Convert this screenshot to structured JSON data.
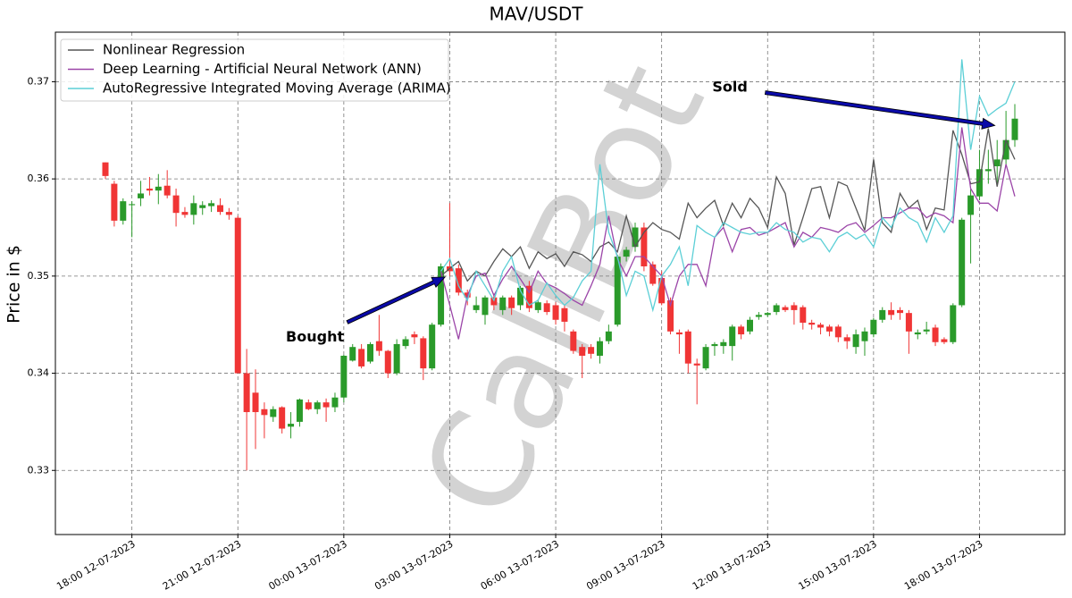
{
  "chart_data": {
    "type": "candlestick",
    "title": "MAV/USDT",
    "y_label": "Price in $",
    "watermark": "CallBot",
    "x": [
      "17:15 12-07-2023",
      "17:30 12-07-2023",
      "17:45 12-07-2023",
      "18:00 12-07-2023",
      "18:15 12-07-2023",
      "18:30 12-07-2023",
      "18:45 12-07-2023",
      "19:00 12-07-2023",
      "19:15 12-07-2023",
      "19:30 12-07-2023",
      "19:45 12-07-2023",
      "20:00 12-07-2023",
      "20:15 12-07-2023",
      "20:30 12-07-2023",
      "20:45 12-07-2023",
      "21:00 12-07-2023",
      "21:15 12-07-2023",
      "21:30 12-07-2023",
      "21:45 12-07-2023",
      "22:00 12-07-2023",
      "22:15 12-07-2023",
      "22:30 12-07-2023",
      "22:45 12-07-2023",
      "23:00 12-07-2023",
      "23:15 12-07-2023",
      "23:30 12-07-2023",
      "23:45 12-07-2023",
      "00:00 13-07-2023",
      "00:15 13-07-2023",
      "00:30 13-07-2023",
      "00:45 13-07-2023",
      "01:00 13-07-2023",
      "01:15 13-07-2023",
      "01:30 13-07-2023",
      "01:45 13-07-2023",
      "02:00 13-07-2023",
      "02:15 13-07-2023",
      "02:30 13-07-2023",
      "02:45 13-07-2023",
      "03:00 13-07-2023",
      "03:15 13-07-2023",
      "03:30 13-07-2023",
      "03:45 13-07-2023",
      "04:00 13-07-2023",
      "04:15 13-07-2023",
      "04:30 13-07-2023",
      "04:45 13-07-2023",
      "05:00 13-07-2023",
      "05:15 13-07-2023",
      "05:30 13-07-2023",
      "05:45 13-07-2023",
      "06:00 13-07-2023",
      "06:15 13-07-2023",
      "06:30 13-07-2023",
      "06:45 13-07-2023",
      "07:00 13-07-2023",
      "07:15 13-07-2023",
      "07:30 13-07-2023",
      "07:45 13-07-2023",
      "08:00 13-07-2023",
      "08:15 13-07-2023",
      "08:30 13-07-2023",
      "08:45 13-07-2023",
      "09:00 13-07-2023",
      "09:15 13-07-2023",
      "09:30 13-07-2023",
      "09:45 13-07-2023",
      "10:00 13-07-2023",
      "10:15 13-07-2023",
      "10:30 13-07-2023",
      "10:45 13-07-2023",
      "11:00 13-07-2023",
      "11:15 13-07-2023",
      "11:30 13-07-2023",
      "11:45 13-07-2023",
      "12:00 13-07-2023",
      "12:15 13-07-2023",
      "12:30 13-07-2023",
      "12:45 13-07-2023",
      "13:00 13-07-2023",
      "13:15 13-07-2023",
      "13:30 13-07-2023",
      "13:45 13-07-2023",
      "14:00 13-07-2023",
      "14:15 13-07-2023",
      "14:30 13-07-2023",
      "14:45 13-07-2023",
      "15:00 13-07-2023",
      "15:15 13-07-2023",
      "15:30 13-07-2023",
      "15:45 13-07-2023",
      "16:00 13-07-2023",
      "16:15 13-07-2023",
      "16:30 13-07-2023",
      "16:45 13-07-2023",
      "17:00 13-07-2023",
      "17:15 13-07-2023",
      "17:30 13-07-2023",
      "17:45 13-07-2023",
      "18:00 13-07-2023",
      "18:15 13-07-2023",
      "18:30 13-07-2023",
      "18:45 13-07-2023",
      "19:00 13-07-2023"
    ],
    "open": [
      0.3617,
      0.3595,
      0.3557,
      0.3573,
      0.358,
      0.359,
      0.3588,
      0.3593,
      0.3583,
      0.3566,
      0.3563,
      0.357,
      0.3572,
      0.3573,
      0.3566,
      0.356,
      0.34,
      0.338,
      0.3363,
      0.3355,
      0.3365,
      0.3345,
      0.335,
      0.337,
      0.3363,
      0.337,
      0.3365,
      0.3375,
      0.3413,
      0.3425,
      0.3412,
      0.3433,
      0.3423,
      0.34,
      0.3428,
      0.344,
      0.3436,
      0.3405,
      0.345,
      0.351,
      0.3508,
      0.3483,
      0.3465,
      0.346,
      0.3478,
      0.3465,
      0.3478,
      0.347,
      0.349,
      0.3465,
      0.3472,
      0.347,
      0.3467,
      0.3443,
      0.3427,
      0.3427,
      0.3418,
      0.3433,
      0.345,
      0.352,
      0.353,
      0.355,
      0.3512,
      0.3498,
      0.3475,
      0.3442,
      0.3443,
      0.341,
      0.3405,
      0.3428,
      0.3428,
      0.3428,
      0.3448,
      0.3443,
      0.3458,
      0.346,
      0.3463,
      0.3468,
      0.347,
      0.3468,
      0.3452,
      0.345,
      0.3448,
      0.3448,
      0.3437,
      0.3427,
      0.3433,
      0.344,
      0.3455,
      0.3465,
      0.3465,
      0.3462,
      0.344,
      0.3443,
      0.3447,
      0.3435,
      0.3432,
      0.347,
      0.3563,
      0.3582,
      0.3608,
      0.3613,
      0.362,
      0.364
    ],
    "high": [
      0.3617,
      0.3598,
      0.358,
      0.3577,
      0.3598,
      0.3602,
      0.3605,
      0.3609,
      0.359,
      0.3571,
      0.3583,
      0.3577,
      0.3578,
      0.358,
      0.357,
      0.3562,
      0.3425,
      0.3404,
      0.337,
      0.3366,
      0.3366,
      0.336,
      0.3374,
      0.3373,
      0.3372,
      0.3374,
      0.338,
      0.3419,
      0.343,
      0.343,
      0.3432,
      0.346,
      0.3424,
      0.3435,
      0.3438,
      0.3443,
      0.3438,
      0.3452,
      0.3513,
      0.3575,
      0.3512,
      0.3486,
      0.3479,
      0.348,
      0.3482,
      0.348,
      0.348,
      0.349,
      0.3495,
      0.3476,
      0.3475,
      0.3473,
      0.347,
      0.3445,
      0.343,
      0.343,
      0.3437,
      0.345,
      0.3522,
      0.353,
      0.3555,
      0.3555,
      0.3515,
      0.3505,
      0.3478,
      0.3445,
      0.3445,
      0.3415,
      0.343,
      0.3432,
      0.3435,
      0.345,
      0.345,
      0.3458,
      0.3463,
      0.3463,
      0.3472,
      0.347,
      0.3473,
      0.347,
      0.3455,
      0.3452,
      0.345,
      0.345,
      0.344,
      0.3445,
      0.3447,
      0.3457,
      0.3468,
      0.3473,
      0.3468,
      0.3465,
      0.3445,
      0.3453,
      0.345,
      0.3437,
      0.3472,
      0.356,
      0.359,
      0.363,
      0.363,
      0.364,
      0.367,
      0.3677
    ],
    "low": [
      0.36,
      0.3551,
      0.3553,
      0.354,
      0.3572,
      0.3583,
      0.3574,
      0.358,
      0.3551,
      0.356,
      0.3553,
      0.3563,
      0.3566,
      0.3563,
      0.3558,
      0.34,
      0.33,
      0.3322,
      0.3333,
      0.335,
      0.3338,
      0.3333,
      0.3345,
      0.3362,
      0.3358,
      0.335,
      0.336,
      0.337,
      0.3412,
      0.3405,
      0.341,
      0.3418,
      0.3395,
      0.3398,
      0.3425,
      0.343,
      0.3393,
      0.3403,
      0.3448,
      0.35,
      0.348,
      0.347,
      0.3462,
      0.345,
      0.3465,
      0.346,
      0.346,
      0.3465,
      0.3463,
      0.3462,
      0.346,
      0.345,
      0.3443,
      0.342,
      0.3395,
      0.3415,
      0.341,
      0.343,
      0.3448,
      0.3515,
      0.3525,
      0.3505,
      0.349,
      0.347,
      0.344,
      0.342,
      0.34,
      0.3368,
      0.3403,
      0.3418,
      0.342,
      0.3413,
      0.3435,
      0.344,
      0.3455,
      0.3458,
      0.346,
      0.3463,
      0.345,
      0.3445,
      0.3445,
      0.344,
      0.3438,
      0.3432,
      0.3425,
      0.342,
      0.3418,
      0.3437,
      0.3452,
      0.3455,
      0.3455,
      0.342,
      0.3435,
      0.344,
      0.3428,
      0.343,
      0.343,
      0.3468,
      0.3513,
      0.3578,
      0.3595,
      0.3593,
      0.3615,
      0.3633
    ],
    "close": [
      0.3603,
      0.3557,
      0.3577,
      0.3574,
      0.3585,
      0.3588,
      0.3592,
      0.3583,
      0.3565,
      0.3563,
      0.3575,
      0.3573,
      0.3575,
      0.3566,
      0.3563,
      0.34,
      0.336,
      0.336,
      0.3357,
      0.3363,
      0.3343,
      0.3348,
      0.3373,
      0.3363,
      0.337,
      0.3365,
      0.3375,
      0.3418,
      0.3427,
      0.3407,
      0.343,
      0.3423,
      0.34,
      0.343,
      0.3435,
      0.3437,
      0.3405,
      0.345,
      0.351,
      0.3505,
      0.3483,
      0.3478,
      0.347,
      0.3478,
      0.347,
      0.3478,
      0.3467,
      0.3488,
      0.3467,
      0.3473,
      0.3463,
      0.3455,
      0.3453,
      0.3423,
      0.3418,
      0.342,
      0.3433,
      0.3443,
      0.352,
      0.3527,
      0.355,
      0.351,
      0.3492,
      0.3472,
      0.3443,
      0.344,
      0.341,
      0.3408,
      0.3427,
      0.343,
      0.3432,
      0.3448,
      0.344,
      0.3455,
      0.346,
      0.3462,
      0.347,
      0.3465,
      0.3465,
      0.3452,
      0.345,
      0.3447,
      0.3443,
      0.3437,
      0.3433,
      0.344,
      0.3443,
      0.3455,
      0.3465,
      0.346,
      0.3462,
      0.3443,
      0.3442,
      0.3445,
      0.3432,
      0.3432,
      0.347,
      0.3558,
      0.3583,
      0.361,
      0.361,
      0.362,
      0.364,
      0.3662
    ],
    "up_color": "#2a9a2a",
    "down_color": "#f03535",
    "series": [
      {
        "name": "Nonlinear Regression",
        "color": "#555555",
        "values": [
          null,
          null,
          null,
          null,
          null,
          null,
          null,
          null,
          null,
          null,
          null,
          null,
          null,
          null,
          null,
          null,
          null,
          null,
          null,
          null,
          null,
          null,
          null,
          null,
          null,
          null,
          null,
          null,
          null,
          null,
          null,
          null,
          null,
          null,
          null,
          null,
          null,
          null,
          0.35,
          0.3508,
          0.3515,
          0.3495,
          0.3505,
          0.35,
          0.3515,
          0.3528,
          0.352,
          0.353,
          0.3508,
          0.3525,
          0.3518,
          0.3523,
          0.351,
          0.3525,
          0.3522,
          0.3515,
          0.353,
          0.3535,
          0.3525,
          0.3562,
          0.353,
          0.3545,
          0.3555,
          0.3548,
          0.3545,
          0.3538,
          0.3575,
          0.356,
          0.357,
          0.3578,
          0.3552,
          0.3575,
          0.356,
          0.358,
          0.357,
          0.355,
          0.3602,
          0.3585,
          0.3532,
          0.356,
          0.359,
          0.3592,
          0.356,
          0.3597,
          0.3593,
          0.357,
          0.3547,
          0.362,
          0.3555,
          0.3545,
          0.3585,
          0.357,
          0.3578,
          0.3548,
          0.357,
          0.3568,
          0.365,
          0.3625,
          0.3595,
          0.3597,
          0.3652,
          0.3592,
          0.364,
          0.362
        ]
      },
      {
        "name": "Deep Learning - Artificial Neural Network (ANN)",
        "color": "#9b45a8",
        "values": [
          null,
          null,
          null,
          null,
          null,
          null,
          null,
          null,
          null,
          null,
          null,
          null,
          null,
          null,
          null,
          null,
          null,
          null,
          null,
          null,
          null,
          null,
          null,
          null,
          null,
          null,
          null,
          null,
          null,
          null,
          null,
          null,
          null,
          null,
          null,
          null,
          null,
          null,
          0.3505,
          0.347,
          0.3435,
          0.348,
          0.35,
          0.3503,
          0.348,
          0.3497,
          0.351,
          0.3497,
          0.3483,
          0.3505,
          0.3492,
          0.3488,
          0.3482,
          0.3475,
          0.347,
          0.349,
          0.3512,
          0.3562,
          0.3518,
          0.35,
          0.352,
          0.352,
          0.351,
          0.35,
          0.347,
          0.35,
          0.3512,
          0.3512,
          0.349,
          0.354,
          0.355,
          0.3525,
          0.3548,
          0.355,
          0.3542,
          0.3545,
          0.355,
          0.3555,
          0.353,
          0.3545,
          0.354,
          0.355,
          0.3548,
          0.3545,
          0.3552,
          0.3555,
          0.3545,
          0.3552,
          0.356,
          0.356,
          0.3565,
          0.357,
          0.357,
          0.356,
          0.3565,
          0.3562,
          0.3555,
          0.3653,
          0.359,
          0.3575,
          0.3575,
          0.3567,
          0.3615,
          0.3582
        ]
      },
      {
        "name": "AutoRegressive Integrated Moving Average (ARIMA)",
        "color": "#5ccfd6",
        "values": [
          null,
          null,
          null,
          null,
          null,
          null,
          null,
          null,
          null,
          null,
          null,
          null,
          null,
          null,
          null,
          null,
          null,
          null,
          null,
          null,
          null,
          null,
          null,
          null,
          null,
          null,
          null,
          null,
          null,
          null,
          null,
          null,
          null,
          null,
          null,
          null,
          null,
          null,
          0.3505,
          0.3518,
          0.349,
          0.3475,
          0.3505,
          0.349,
          0.3475,
          0.3505,
          0.352,
          0.3485,
          0.347,
          0.3475,
          0.3493,
          0.348,
          0.347,
          0.3478,
          0.3495,
          0.3505,
          0.3615,
          0.3545,
          0.352,
          0.348,
          0.3505,
          0.35,
          0.3465,
          0.35,
          0.3512,
          0.353,
          0.349,
          0.3552,
          0.3545,
          0.354,
          0.3555,
          0.355,
          0.3545,
          0.3543,
          0.3545,
          0.3545,
          0.3555,
          0.3548,
          0.3545,
          0.3535,
          0.354,
          0.3538,
          0.3525,
          0.354,
          0.3545,
          0.3538,
          0.3543,
          0.353,
          0.356,
          0.355,
          0.357,
          0.356,
          0.3555,
          0.3535,
          0.356,
          0.3545,
          0.3562,
          0.3723,
          0.363,
          0.3685,
          0.3665,
          0.3672,
          0.3678,
          0.37
        ]
      }
    ],
    "annotations": [
      {
        "text": "Bought",
        "xy": [
          "02:52 13-07-2023",
          0.3499
        ],
        "xytext": [
          "23:11 12-07-2023",
          0.3437
        ]
      },
      {
        "text": "Sold",
        "xy": [
          "18:26 13-07-2023",
          0.3655
        ],
        "xytext": [
          "10:56 13-07-2023",
          0.3694
        ]
      }
    ],
    "xlim": [
      "15:50 12-07-2023",
      "20:25 13-07-2023"
    ],
    "xticks": [
      "18:00 12-07-2023",
      "21:00 12-07-2023",
      "00:00 13-07-2023",
      "03:00 13-07-2023",
      "06:00 13-07-2023",
      "09:00 13-07-2023",
      "12:00 13-07-2023",
      "15:00 13-07-2023",
      "18:00 13-07-2023"
    ],
    "ylim": [
      0.3234,
      0.3751
    ],
    "yticks": [
      0.33,
      0.34,
      0.35,
      0.36,
      0.37
    ],
    "grid": true,
    "legend": "upper left"
  }
}
